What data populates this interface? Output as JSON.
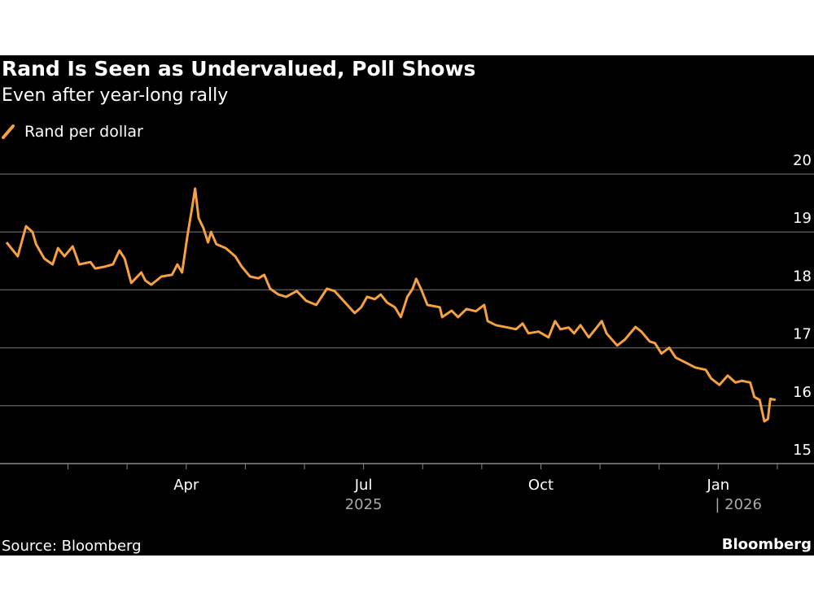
{
  "chart_data": {
    "type": "line",
    "title": "Rand Is Seen as Undervalued, Poll Shows",
    "subtitle": "Even after year-long rally",
    "source": "Source: Bloomberg",
    "brand": "Bloomberg",
    "series": [
      {
        "name": "Rand per dollar",
        "color": "#f5a041",
        "values": [
          18.82,
          18.58,
          19.1,
          19.0,
          18.79,
          18.54,
          18.44,
          18.72,
          18.58,
          18.75,
          18.44,
          18.48,
          18.37,
          18.4,
          18.44,
          18.68,
          18.54,
          18.12,
          18.3,
          18.16,
          18.09,
          18.23,
          18.26,
          18.44,
          18.3,
          18.93,
          19.42,
          19.75,
          19.24,
          19.07,
          18.82,
          19.0,
          18.79,
          18.72,
          18.58,
          18.4,
          18.23,
          18.2,
          18.26,
          18.02,
          17.92,
          17.88,
          17.98,
          17.81,
          17.74,
          18.02,
          17.98,
          17.78,
          17.6,
          17.7,
          17.88,
          17.84,
          17.92,
          17.78,
          17.7,
          17.53,
          17.88,
          18.02,
          18.19,
          18.02,
          17.74,
          17.7,
          17.53,
          17.64,
          17.53,
          17.67,
          17.63,
          17.74,
          17.46,
          17.39,
          17.35,
          17.32,
          17.42,
          17.25,
          17.28,
          17.18,
          17.46,
          17.32,
          17.35,
          17.25,
          17.39,
          17.18,
          17.32,
          17.46,
          17.25,
          17.04,
          17.14,
          17.36,
          17.28,
          17.11,
          17.08,
          16.9,
          17.0,
          16.83,
          16.76,
          16.66,
          16.62,
          16.47,
          16.36,
          16.52,
          16.4,
          16.43,
          16.4,
          16.15,
          16.1,
          15.73,
          15.77,
          16.12,
          16.1
        ]
      }
    ],
    "x": [
      -0.04,
      0.15,
      0.29,
      0.4,
      0.46,
      0.6,
      0.74,
      0.83,
      0.94,
      1.08,
      1.19,
      1.38,
      1.46,
      1.62,
      1.76,
      1.87,
      1.96,
      2.07,
      2.24,
      2.31,
      2.41,
      2.58,
      2.76,
      2.85,
      2.93,
      3.02,
      3.1,
      3.15,
      3.21,
      3.29,
      3.37,
      3.42,
      3.51,
      3.67,
      3.83,
      3.94,
      4.08,
      4.22,
      4.32,
      4.42,
      4.56,
      4.69,
      4.87,
      5.03,
      5.2,
      5.38,
      5.51,
      5.69,
      5.85,
      5.96,
      6.06,
      6.19,
      6.29,
      6.4,
      6.53,
      6.63,
      6.74,
      6.83,
      6.89,
      6.97,
      7.08,
      7.29,
      7.33,
      7.49,
      7.6,
      7.74,
      7.9,
      8.04,
      8.1,
      8.24,
      8.44,
      8.58,
      8.69,
      8.79,
      8.96,
      9.13,
      9.24,
      9.33,
      9.47,
      9.56,
      9.67,
      9.81,
      9.92,
      10.03,
      10.11,
      10.29,
      10.42,
      10.6,
      10.7,
      10.84,
      10.93,
      11.04,
      11.17,
      11.28,
      11.42,
      11.61,
      11.79,
      11.88,
      12.02,
      12.16,
      12.29,
      12.4,
      12.54,
      12.61,
      12.7,
      12.78,
      12.84,
      12.88,
      12.97
    ],
    "xlim": [
      -0.15,
      13.62
    ],
    "xticks": [
      {
        "value": 3,
        "label": "Apr"
      },
      {
        "value": 6,
        "label": "Jul"
      },
      {
        "value": 9,
        "label": "Oct"
      },
      {
        "value": 12,
        "label": "Jan"
      }
    ],
    "minor_xticks": [
      1,
      2,
      4,
      5,
      7,
      8,
      10,
      11,
      13
    ],
    "year_labels": [
      {
        "value": 6,
        "label": "2025"
      },
      {
        "value": 12,
        "label": "| 2026"
      }
    ],
    "ylim": [
      15,
      20
    ],
    "yticks": [
      15,
      16,
      17,
      18,
      19,
      20
    ],
    "grid": true
  }
}
